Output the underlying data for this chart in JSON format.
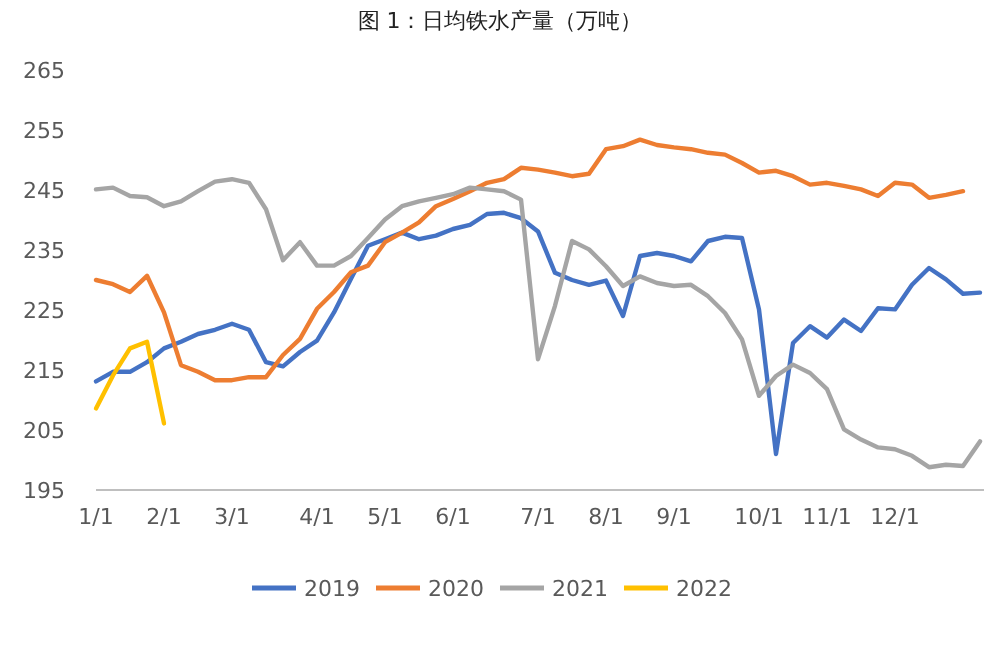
{
  "chart_data": {
    "type": "line",
    "title": "图 1：日均铁水产量（万吨）",
    "categories": [
      "1/1",
      null,
      null,
      null,
      "2/1",
      null,
      null,
      null,
      "3/1",
      null,
      null,
      null,
      null,
      "4/1",
      null,
      null,
      null,
      "5/1",
      null,
      null,
      null,
      "6/1",
      null,
      null,
      null,
      null,
      "7/1",
      null,
      null,
      null,
      "8/1",
      null,
      null,
      null,
      "9/1",
      null,
      null,
      null,
      null,
      "10/1",
      null,
      null,
      null,
      "11/1",
      null,
      null,
      null,
      "12/1",
      null,
      null,
      null,
      null,
      null
    ],
    "ylim": [
      195,
      265
    ],
    "yticks": [
      195,
      205,
      215,
      225,
      235,
      245,
      255,
      265
    ],
    "grid": false,
    "legend": "bottom",
    "marker": "none",
    "line_style": "solid",
    "series": [
      {
        "name": "2019",
        "color": "#4472c4",
        "values": [
          213.1,
          214.7,
          214.7,
          216.3,
          218.6,
          219.7,
          221,
          221.7,
          222.7,
          221.7,
          216.3,
          215.6,
          218,
          219.9,
          224.6,
          230.2,
          235.7,
          236.8,
          237.9,
          236.8,
          237.4,
          238.5,
          239.2,
          241,
          241.2,
          240.3,
          238.1,
          231.2,
          230,
          229.2,
          229.9,
          224,
          234,
          234.5,
          234,
          233.1,
          236.5,
          237.2,
          237,
          225.1,
          201,
          219.5,
          222.3,
          220.4,
          223.4,
          221.5,
          225.3,
          225.1,
          229.2,
          232,
          230.1,
          227.7,
          227.9
        ]
      },
      {
        "name": "2020",
        "color": "#ed7d31",
        "values": [
          230,
          229.3,
          228,
          230.7,
          224.6,
          215.8,
          214.7,
          213.3,
          213.3,
          213.8,
          213.8,
          217.5,
          220.2,
          225.2,
          228,
          231.3,
          232.4,
          236.3,
          237.9,
          239.6,
          242.3,
          243.5,
          244.8,
          246.2,
          246.8,
          248.7,
          248.4,
          247.9,
          247.3,
          247.7,
          251.8,
          252.3,
          253.4,
          252.5,
          252.1,
          251.8,
          251.2,
          250.9,
          249.5,
          247.9,
          248.2,
          247.3,
          245.9,
          246.2,
          245.7,
          245.1,
          244,
          246.2,
          245.9,
          243.7,
          244.2,
          244.8,
          null
        ]
      },
      {
        "name": "2021",
        "color": "#a5a5a5",
        "values": [
          245.1,
          245.4,
          244,
          243.8,
          242.3,
          243.1,
          244.8,
          246.4,
          246.8,
          246.2,
          241.8,
          233.3,
          236.3,
          232.4,
          232.4,
          234,
          237,
          240.1,
          242.3,
          243.1,
          243.7,
          244.3,
          245.4,
          245.1,
          244.8,
          243.4,
          216.8,
          225.7,
          236.5,
          235.1,
          232.3,
          229,
          230.6,
          229.5,
          229,
          229.2,
          227.3,
          224.5,
          220.1,
          210.7,
          214,
          215.9,
          214.5,
          211.8,
          205.1,
          203.4,
          202.1,
          201.8,
          200.7,
          198.8,
          199.2,
          199,
          203.1
        ]
      },
      {
        "name": "2022",
        "color": "#ffc000",
        "values": [
          208.6,
          214.1,
          218.6,
          219.7,
          206.1,
          null,
          null,
          null,
          null,
          null,
          null,
          null,
          null,
          null,
          null,
          null,
          null,
          null,
          null,
          null,
          null,
          null,
          null,
          null,
          null,
          null,
          null,
          null,
          null,
          null,
          null,
          null,
          null,
          null,
          null,
          null,
          null,
          null,
          null,
          null,
          null,
          null,
          null,
          null,
          null,
          null,
          null,
          null,
          null,
          null,
          null,
          null,
          null
        ]
      }
    ]
  }
}
